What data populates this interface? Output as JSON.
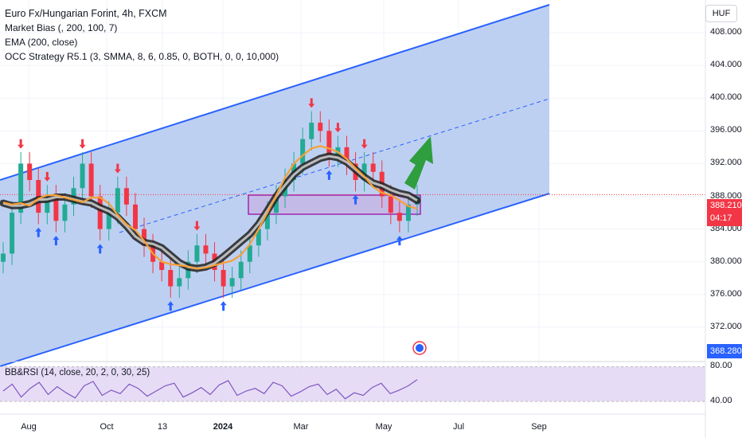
{
  "legend": {
    "title": "Euro Fx/Hungarian Forint, 4h, FXCM",
    "ind1": "Market Bias (, 200, 100, 7)",
    "ind2": "EMA (200, close)",
    "ind3": "OCC Strategy R5.1 (3, SMMA, 8, 6, 0.85, 0, BOTH, 0, 0, 10,000)"
  },
  "rsi_legend": "BB&RSI (14, close, 20, 2, 0, 30, 25)",
  "currency": "HUF",
  "last_price": "388.210",
  "countdown": "04:17",
  "low_tag": "368.280",
  "colors": {
    "channel_fill": "#b3c8ee",
    "channel_line": "#2962ff",
    "ema": "#f7a035",
    "bias": "#555555",
    "up": "#22ab94",
    "down": "#f23645",
    "box": "#9c27b0",
    "arrow": "#2e9e3f",
    "rsi": "#7e57c2"
  },
  "chart_data": [
    {
      "type": "line",
      "title": "Euro Fx/Hungarian Forint, 4h, FXCM",
      "x_ticks": [
        "Aug",
        "Oct",
        "13",
        "2024",
        "Mar",
        "May",
        "Jul",
        "Sep"
      ],
      "y_ticks": [
        "408.000",
        "404.000",
        "400.000",
        "396.000",
        "392.000",
        "388.000",
        "384.000",
        "380.000",
        "376.000",
        "372.000"
      ],
      "ylim": [
        368,
        412
      ],
      "series": [
        {
          "values": [
            381,
            386,
            392,
            390,
            386,
            388,
            385,
            387,
            389,
            392,
            388,
            384,
            386,
            389,
            387,
            384,
            382,
            380,
            379,
            377,
            378,
            380,
            382,
            381,
            379,
            377,
            378,
            380,
            382,
            384,
            386,
            388,
            390,
            392,
            395,
            397,
            396,
            393,
            394,
            392,
            390,
            392,
            391,
            388,
            386,
            385,
            387,
            388
          ]
        }
      ],
      "annotations": [
        "Market Bias",
        "EMA (200, close)",
        "Channel",
        "Range box",
        "Projection arrow"
      ]
    },
    {
      "type": "line",
      "title": "BB&RSI (14, close, 20, 2, 0, 30, 25)",
      "y_ticks": [
        "80.00",
        "40.00"
      ],
      "ylim": [
        30,
        85
      ],
      "series": [
        {
          "values": [
            52,
            60,
            45,
            55,
            62,
            48,
            57,
            50,
            44,
            58,
            63,
            47,
            53,
            49,
            60,
            55,
            46,
            52,
            58,
            61,
            45,
            50,
            56,
            48,
            59,
            64,
            47,
            52,
            55,
            49,
            62,
            58,
            46,
            51,
            57,
            60,
            48,
            54,
            43,
            50,
            47,
            56,
            61,
            49,
            53,
            58,
            65
          ]
        }
      ]
    }
  ]
}
